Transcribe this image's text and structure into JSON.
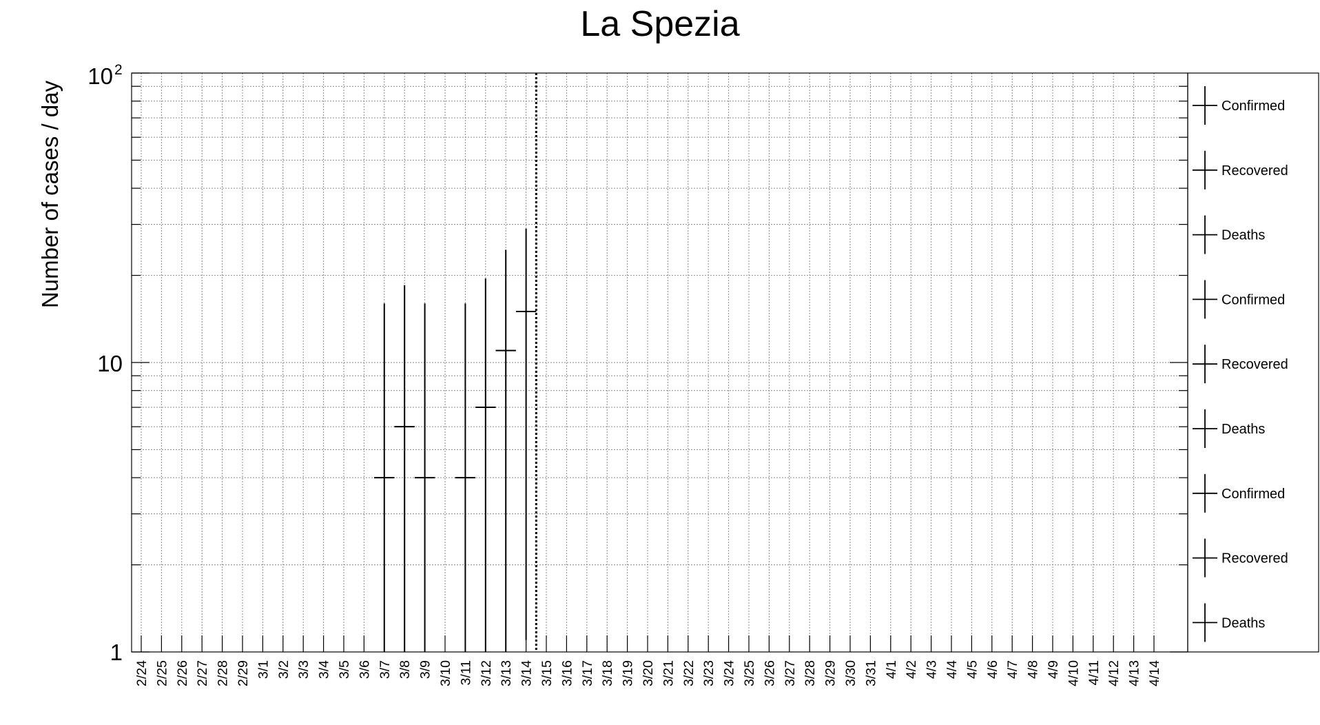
{
  "chart_data": {
    "type": "scatter",
    "title": "La Spezia",
    "ylabel": "Number of cases / day",
    "xlabel": "",
    "yscale": "log",
    "ylim": [
      1,
      100
    ],
    "ytick_labels": {
      "low": "1",
      "mid": "10",
      "high_base": "10",
      "high_exp": "2"
    },
    "grid": true,
    "categories": [
      "2/24",
      "2/25",
      "2/26",
      "2/27",
      "2/28",
      "2/29",
      "3/1",
      "3/2",
      "3/3",
      "3/4",
      "3/5",
      "3/6",
      "3/7",
      "3/8",
      "3/9",
      "3/10",
      "3/11",
      "3/12",
      "3/13",
      "3/14",
      "3/15",
      "3/16",
      "3/17",
      "3/18",
      "3/19",
      "3/20",
      "3/21",
      "3/22",
      "3/23",
      "3/24",
      "3/25",
      "3/26",
      "3/27",
      "3/28",
      "3/29",
      "3/30",
      "3/31",
      "4/1",
      "4/2",
      "4/3",
      "4/4",
      "4/5",
      "4/6",
      "4/7",
      "4/8",
      "4/9",
      "4/10",
      "4/11",
      "4/12",
      "4/13",
      "4/14"
    ],
    "series": [
      {
        "name": "Confirmed",
        "color": "#000000",
        "points": [
          {
            "x": "3/7",
            "y": 4,
            "ylow": 1,
            "yhigh": 16
          },
          {
            "x": "3/8",
            "y": 6,
            "ylow": 1,
            "yhigh": 18.5
          },
          {
            "x": "3/9",
            "y": 4,
            "ylow": 1,
            "yhigh": 16
          },
          {
            "x": "3/11",
            "y": 4,
            "ylow": 1,
            "yhigh": 16
          },
          {
            "x": "3/12",
            "y": 7,
            "ylow": 1,
            "yhigh": 19.5
          },
          {
            "x": "3/13",
            "y": 11,
            "ylow": 1,
            "yhigh": 24.5
          },
          {
            "x": "3/14",
            "y": 15,
            "ylow": 1.1,
            "yhigh": 29
          }
        ]
      }
    ],
    "vertical_line": {
      "after": "3/14",
      "style": "dotted"
    },
    "legend": {
      "placement": "right",
      "entries": [
        "Confirmed",
        "Recovered",
        "Deaths",
        "Confirmed",
        "Recovered",
        "Deaths",
        "Confirmed",
        "Recovered",
        "Deaths"
      ]
    }
  }
}
